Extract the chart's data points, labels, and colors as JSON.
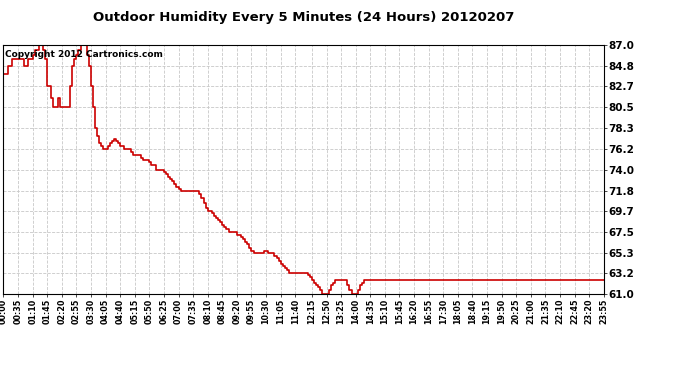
{
  "title": "Outdoor Humidity Every 5 Minutes (24 Hours) 20120207",
  "copyright_text": "Copyright 2012 Cartronics.com",
  "line_color": "#cc0000",
  "bg_color": "#ffffff",
  "plot_bg_color": "#ffffff",
  "grid_color": "#c8c8c8",
  "ylim": [
    61.0,
    87.0
  ],
  "yticks": [
    61.0,
    63.2,
    65.3,
    67.5,
    69.7,
    71.8,
    74.0,
    76.2,
    78.3,
    80.5,
    82.7,
    84.8,
    87.0
  ],
  "xtick_labels": [
    "00:00",
    "00:35",
    "01:10",
    "01:45",
    "02:20",
    "02:55",
    "03:30",
    "04:05",
    "04:40",
    "05:15",
    "05:50",
    "06:25",
    "07:00",
    "07:35",
    "08:10",
    "08:45",
    "09:20",
    "09:55",
    "10:30",
    "11:05",
    "11:40",
    "12:15",
    "12:50",
    "13:25",
    "14:00",
    "14:35",
    "15:10",
    "15:45",
    "16:20",
    "16:55",
    "17:30",
    "18:05",
    "18:40",
    "19:15",
    "19:50",
    "20:25",
    "21:00",
    "21:35",
    "22:10",
    "22:45",
    "23:20",
    "23:55"
  ],
  "humidity_values": [
    84.0,
    84.0,
    84.8,
    84.8,
    85.5,
    85.5,
    85.5,
    85.5,
    85.5,
    85.5,
    84.8,
    84.8,
    85.5,
    85.5,
    86.0,
    86.5,
    86.5,
    87.0,
    87.0,
    86.5,
    85.5,
    82.7,
    82.7,
    81.5,
    80.5,
    80.5,
    81.5,
    80.5,
    80.5,
    80.5,
    80.5,
    80.5,
    82.7,
    84.8,
    85.5,
    86.0,
    86.5,
    87.0,
    87.0,
    87.0,
    86.0,
    84.8,
    82.7,
    80.5,
    78.3,
    77.5,
    76.8,
    76.5,
    76.2,
    76.2,
    76.5,
    76.8,
    77.0,
    77.2,
    77.0,
    76.8,
    76.5,
    76.5,
    76.2,
    76.2,
    76.2,
    75.8,
    75.5,
    75.5,
    75.5,
    75.5,
    75.2,
    75.0,
    75.0,
    75.0,
    74.8,
    74.5,
    74.5,
    74.0,
    74.0,
    74.0,
    74.0,
    73.8,
    73.5,
    73.2,
    73.0,
    72.8,
    72.5,
    72.2,
    72.0,
    71.8,
    71.8,
    71.8,
    71.8,
    71.8,
    71.8,
    71.8,
    71.8,
    71.8,
    71.5,
    71.0,
    70.5,
    70.0,
    69.7,
    69.7,
    69.5,
    69.2,
    69.0,
    68.8,
    68.5,
    68.2,
    68.0,
    67.8,
    67.5,
    67.5,
    67.5,
    67.5,
    67.2,
    67.2,
    67.0,
    66.8,
    66.5,
    66.2,
    65.8,
    65.5,
    65.3,
    65.3,
    65.3,
    65.3,
    65.3,
    65.5,
    65.5,
    65.3,
    65.3,
    65.3,
    65.0,
    64.8,
    64.5,
    64.2,
    64.0,
    63.8,
    63.5,
    63.2,
    63.2,
    63.2,
    63.2,
    63.2,
    63.2,
    63.2,
    63.2,
    63.2,
    63.0,
    62.8,
    62.5,
    62.2,
    62.0,
    61.8,
    61.5,
    61.0,
    61.0,
    61.0,
    61.5,
    62.0,
    62.2,
    62.5,
    62.5,
    62.5,
    62.5,
    62.5,
    62.5,
    62.0,
    61.5,
    61.0,
    61.0,
    61.0,
    61.5,
    62.0,
    62.2,
    62.5,
    62.5,
    62.5,
    62.5,
    62.5,
    62.5,
    62.5,
    62.5,
    62.5,
    62.5,
    62.5,
    62.5,
    62.5,
    62.5,
    62.5,
    62.5,
    62.5,
    62.5,
    62.5,
    62.5,
    62.5,
    62.5,
    62.5,
    62.5,
    62.5,
    62.5,
    62.5,
    62.5,
    62.5,
    62.5,
    62.5,
    62.5,
    62.5,
    62.5,
    62.5,
    62.5,
    62.5,
    62.5,
    62.5,
    62.5,
    62.5,
    62.5,
    62.5,
    62.5,
    62.5,
    62.5,
    62.5,
    62.5,
    62.5,
    62.5,
    62.5,
    62.5,
    62.5,
    62.5,
    62.5,
    62.5,
    62.5,
    62.5,
    62.5,
    62.5,
    62.5,
    62.5,
    62.5,
    62.5,
    62.5,
    62.5,
    62.5,
    62.5,
    62.5,
    62.5,
    62.5,
    62.5,
    62.5,
    62.5,
    62.5,
    62.5,
    62.5,
    62.5,
    62.5,
    62.5,
    62.5,
    62.5,
    62.5,
    62.5,
    62.5,
    62.5,
    62.5,
    62.5,
    62.5,
    62.5,
    62.5,
    62.5,
    62.5,
    62.5,
    62.5,
    62.5,
    62.5,
    62.5,
    62.5,
    62.5,
    62.5,
    62.5,
    62.5,
    62.5,
    62.5,
    62.5,
    62.5,
    62.5,
    62.5,
    62.5,
    62.5,
    62.5,
    62.5,
    62.5,
    62.5,
    62.5
  ]
}
